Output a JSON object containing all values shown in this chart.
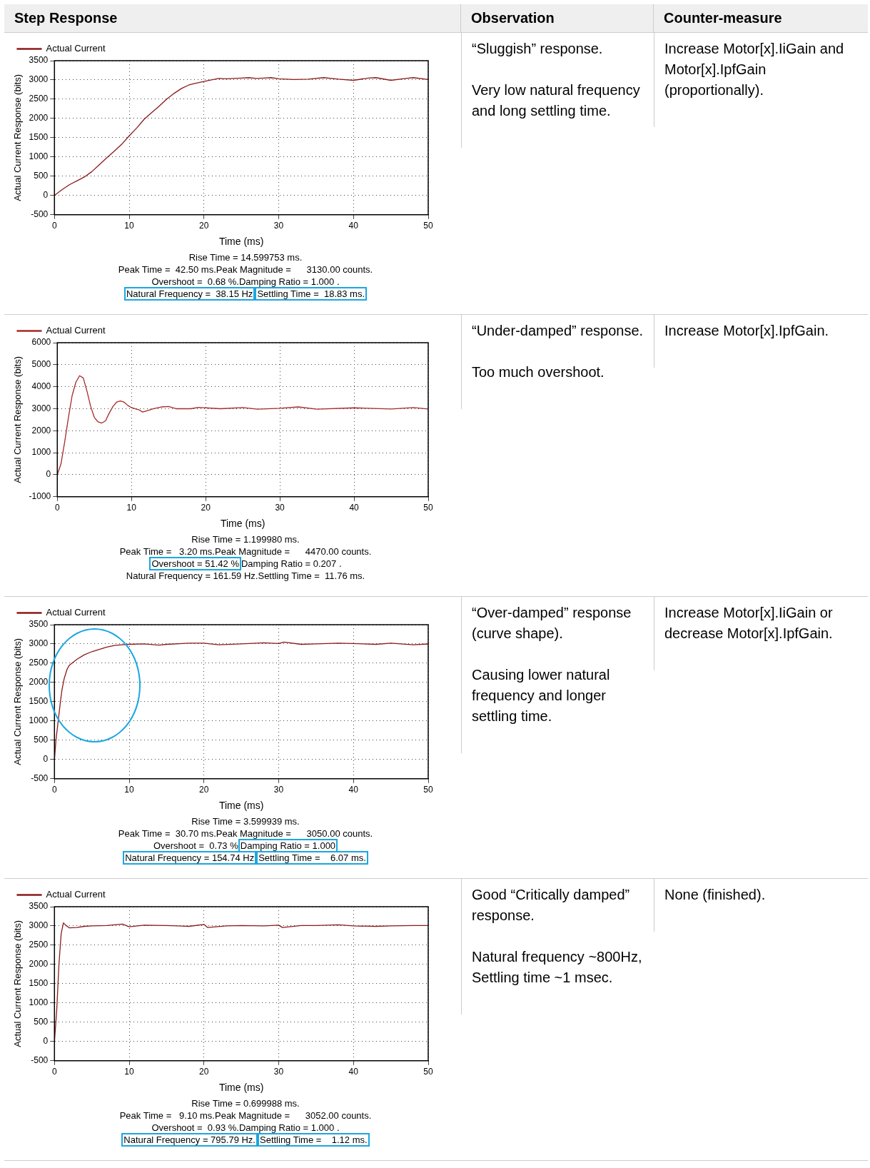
{
  "chart_data": [
    {
      "type": "other",
      "annotations": [
        "Step Response",
        "Observation",
        "Counter-measure"
      ]
    },
    {
      "type": "line",
      "xlabel": "Time (ms)",
      "ylabel": "Actual Current Response (bits)",
      "xlim": [
        0,
        50
      ],
      "xticks": [
        0,
        10,
        20,
        30,
        40,
        50
      ],
      "ylim": [
        -500,
        3500
      ],
      "yticks": [
        -500,
        0,
        500,
        1000,
        1500,
        2000,
        2500,
        3000,
        3500
      ],
      "grid": true,
      "legend": "top left",
      "marker": "none",
      "line_style": "solid",
      "series": [
        {
          "name": "Actual Current",
          "color": "#8b1a1a",
          "x": [
            0,
            1,
            2,
            3,
            4,
            5,
            6,
            7,
            8,
            9,
            10,
            11,
            12,
            13,
            14,
            15,
            16,
            17,
            18,
            19,
            20,
            21,
            22,
            23,
            24,
            25,
            26,
            27,
            28,
            29,
            30,
            32,
            34,
            36,
            38,
            40,
            42,
            43,
            45,
            47,
            48,
            50
          ],
          "values": [
            0,
            150,
            280,
            380,
            480,
            620,
            800,
            980,
            1150,
            1330,
            1550,
            1750,
            1980,
            2150,
            2320,
            2500,
            2650,
            2780,
            2870,
            2920,
            2960,
            3000,
            3040,
            3030,
            3040,
            3050,
            3060,
            3040,
            3050,
            3060,
            3030,
            3010,
            3020,
            3060,
            3020,
            2990,
            3050,
            3060,
            2990,
            3040,
            3060,
            3010
          ]
        }
      ],
      "annotations": [
        "Rise Time = 14.599753 ms.",
        "Peak Time =  42.50 ms.",
        "Peak Magnitude =      3130.00 counts.",
        "Overshoot =  0.68 %.",
        "Damping Ratio = 1.000 .",
        "Natural Frequency =  38.15 Hz",
        "Settling Time =  18.83 ms."
      ]
    },
    {
      "type": "other",
      "annotations": [
        "“Sluggish” response.",
        "Very low natural frequency and long settling time."
      ]
    },
    {
      "type": "other",
      "annotations": [
        "Increase Motor[x].IiGain and Motor[x].IpfGain (proportionally)."
      ]
    },
    {
      "type": "line",
      "xlabel": "Time (ms)",
      "ylabel": "Actual Current Response (bits)",
      "xlim": [
        0,
        50
      ],
      "xticks": [
        0,
        10,
        20,
        30,
        40,
        50
      ],
      "ylim": [
        -1000,
        6000
      ],
      "yticks": [
        -1000,
        0,
        1000,
        2000,
        3000,
        4000,
        5000,
        6000
      ],
      "grid": true,
      "legend": "top left",
      "marker": "none",
      "line_style": "solid",
      "series": [
        {
          "name": "Actual Current",
          "color": "#a52a2a",
          "x": [
            0,
            0.5,
            1,
            1.5,
            2,
            2.5,
            3,
            3.5,
            4,
            4.5,
            5,
            5.5,
            6,
            6.5,
            7,
            7.5,
            8,
            8.5,
            9,
            9.5,
            10,
            11,
            11.5,
            12,
            13,
            14,
            15,
            16,
            18,
            19,
            22,
            25,
            27,
            30,
            32.5,
            35,
            40,
            45,
            48,
            50
          ],
          "values": [
            0,
            500,
            1500,
            2600,
            3600,
            4200,
            4500,
            4400,
            3800,
            3100,
            2600,
            2400,
            2350,
            2450,
            2800,
            3100,
            3300,
            3350,
            3300,
            3150,
            3050,
            2950,
            2850,
            2900,
            3000,
            3080,
            3100,
            3000,
            3000,
            3060,
            3000,
            3050,
            2980,
            3020,
            3080,
            2980,
            3040,
            2990,
            3050,
            2990
          ]
        }
      ],
      "annotations": [
        "Rise Time = 1.199980 ms.",
        "Peak Time =   3.20 ms.",
        "Peak Magnitude =      4470.00 counts.",
        "Overshoot = 51.42 %",
        "Damping Ratio = 0.207 .",
        "Natural Frequency = 161.59 Hz.",
        "Settling Time =  11.76 ms."
      ]
    },
    {
      "type": "other",
      "annotations": [
        "“Under-damped” response.",
        "Too much overshoot."
      ]
    },
    {
      "type": "other",
      "annotations": [
        "Increase Motor[x].IpfGain."
      ]
    },
    {
      "type": "line",
      "xlabel": "Time (ms)",
      "ylabel": "Actual Current Response (bits)",
      "xlim": [
        0,
        50
      ],
      "xticks": [
        0,
        10,
        20,
        30,
        40,
        50
      ],
      "ylim": [
        -500,
        3500
      ],
      "yticks": [
        -500,
        0,
        500,
        1000,
        1500,
        2000,
        2500,
        3000,
        3500
      ],
      "grid": true,
      "legend": "top left",
      "marker": "none",
      "line_style": "solid",
      "series": [
        {
          "name": "Actual Current",
          "color": "#8b1a1a",
          "x": [
            0,
            0.2,
            0.5,
            0.8,
            1,
            1.3,
            1.7,
            2,
            3,
            4,
            5,
            6,
            7,
            8,
            9,
            10,
            12,
            14,
            15,
            18,
            20,
            22,
            25,
            28,
            30,
            30.7,
            33,
            35,
            38,
            40,
            43,
            45,
            48,
            50
          ],
          "values": [
            0,
            500,
            1000,
            1500,
            1800,
            2100,
            2350,
            2450,
            2600,
            2720,
            2800,
            2860,
            2920,
            2960,
            2980,
            2990,
            3000,
            2970,
            2990,
            3020,
            3020,
            2980,
            3000,
            3030,
            3010,
            3050,
            2990,
            3000,
            3020,
            3010,
            2990,
            3020,
            2980,
            3000
          ]
        }
      ],
      "annotations": [
        "Rise Time = 3.599939 ms.",
        "Peak Time =  30.70 ms.",
        "Peak Magnitude =      3050.00 counts.",
        "Overshoot =  0.73 %",
        "Damping Ratio = 1.000",
        "Natural Frequency = 154.74 Hz",
        "Settling Time =    6.07 ms."
      ]
    },
    {
      "type": "other",
      "annotations": [
        "“Over-damped” response (curve shape).",
        "Causing lower natural frequency and longer settling time."
      ]
    },
    {
      "type": "other",
      "annotations": [
        "Increase Motor[x].IiGain or decrease Motor[x].IpfGain."
      ]
    },
    {
      "type": "line",
      "xlabel": "Time (ms)",
      "ylabel": "Actual Current Response (bits)",
      "xlim": [
        0,
        50
      ],
      "xticks": [
        0,
        10,
        20,
        30,
        40,
        50
      ],
      "ylim": [
        -500,
        3500
      ],
      "yticks": [
        -500,
        0,
        500,
        1000,
        1500,
        2000,
        2500,
        3000,
        3500
      ],
      "grid": true,
      "legend": "top left",
      "marker": "none",
      "line_style": "solid",
      "series": [
        {
          "name": "Actual Current",
          "color": "#8b1a1a",
          "x": [
            0,
            0.3,
            0.6,
            0.9,
            1.2,
            1.5,
            2,
            3,
            4,
            5,
            7,
            9.1,
            10,
            12,
            15,
            18,
            20,
            20.5,
            23,
            25,
            28,
            30,
            30.5,
            33,
            35,
            38,
            40,
            43,
            45,
            48,
            50
          ],
          "values": [
            0,
            800,
            2000,
            2800,
            3080,
            3020,
            2950,
            2960,
            2990,
            3000,
            3010,
            3050,
            2980,
            3020,
            3010,
            2990,
            3040,
            2960,
            3000,
            3010,
            3000,
            3020,
            2960,
            3010,
            3010,
            3030,
            3000,
            2990,
            3000,
            3010,
            3010
          ]
        }
      ],
      "annotations": [
        "Rise Time = 0.699988 ms.",
        "Peak Time =   9.10 ms.",
        "Peak Magnitude =      3052.00 counts.",
        "Overshoot =  0.93 %.",
        "Damping Ratio = 1.000 .",
        "Natural Frequency = 795.79 Hz.",
        "Settling Time =    1.12 ms."
      ]
    },
    {
      "type": "other",
      "annotations": [
        "Good “Critically damped” response.",
        "Natural frequency ~800Hz, Settling time ~1 msec."
      ]
    },
    {
      "type": "other",
      "annotations": [
        "None (finished)."
      ]
    }
  ]
}
